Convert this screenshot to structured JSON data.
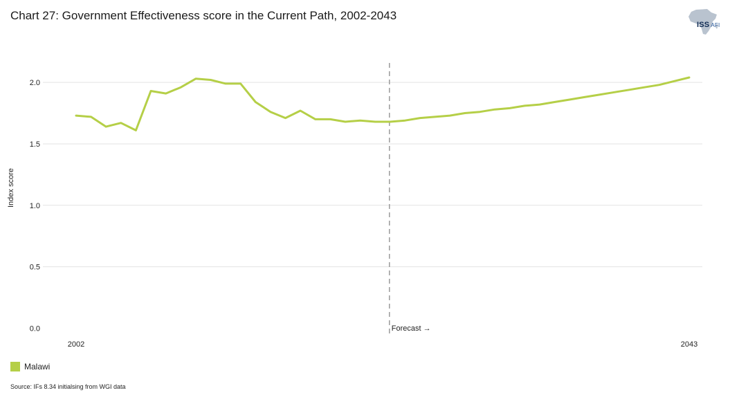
{
  "header": {
    "title": "Chart 27: Government Effectiveness score in the Current Path, 2002-2043"
  },
  "logo": {
    "label": "ISS",
    "sub": "AFI",
    "icon": "africa-map-icon",
    "color": "#b9c3cf"
  },
  "source": "Source: IFs 8.34 initialsing from WGI data",
  "chart_data": {
    "type": "line",
    "title": "Chart 27: Government Effectiveness score in the Current Path, 2002-2043",
    "xlabel": "",
    "ylabel": "Index score",
    "xlim": [
      2002,
      2043
    ],
    "ylim": [
      0,
      2.2
    ],
    "yticks": [
      0.0,
      0.5,
      1.0,
      1.5,
      2.0
    ],
    "ytick_labels": [
      "0.0",
      "0.5",
      "1.0",
      "1.5",
      "2.0"
    ],
    "xtick_labels": [
      "2002",
      "2043"
    ],
    "grid": true,
    "forecast_start": 2023,
    "forecast_label": "Forecast →",
    "legend_position": "bottom-left",
    "series": [
      {
        "name": "Malawi",
        "color": "#b5cf47",
        "x": [
          2002,
          2003,
          2004,
          2005,
          2006,
          2007,
          2008,
          2009,
          2010,
          2011,
          2012,
          2013,
          2014,
          2015,
          2016,
          2017,
          2018,
          2019,
          2020,
          2021,
          2022,
          2023,
          2024,
          2025,
          2026,
          2027,
          2028,
          2029,
          2030,
          2031,
          2032,
          2033,
          2034,
          2035,
          2036,
          2037,
          2038,
          2039,
          2040,
          2041,
          2042,
          2043
        ],
        "values": [
          1.73,
          1.72,
          1.64,
          1.67,
          1.61,
          1.93,
          1.91,
          1.96,
          2.03,
          2.02,
          1.99,
          1.99,
          1.84,
          1.76,
          1.71,
          1.77,
          1.7,
          1.7,
          1.68,
          1.69,
          1.68,
          1.68,
          1.69,
          1.71,
          1.72,
          1.73,
          1.75,
          1.76,
          1.78,
          1.79,
          1.81,
          1.82,
          1.84,
          1.86,
          1.88,
          1.9,
          1.92,
          1.94,
          1.96,
          1.98,
          2.01,
          2.04
        ]
      }
    ]
  }
}
